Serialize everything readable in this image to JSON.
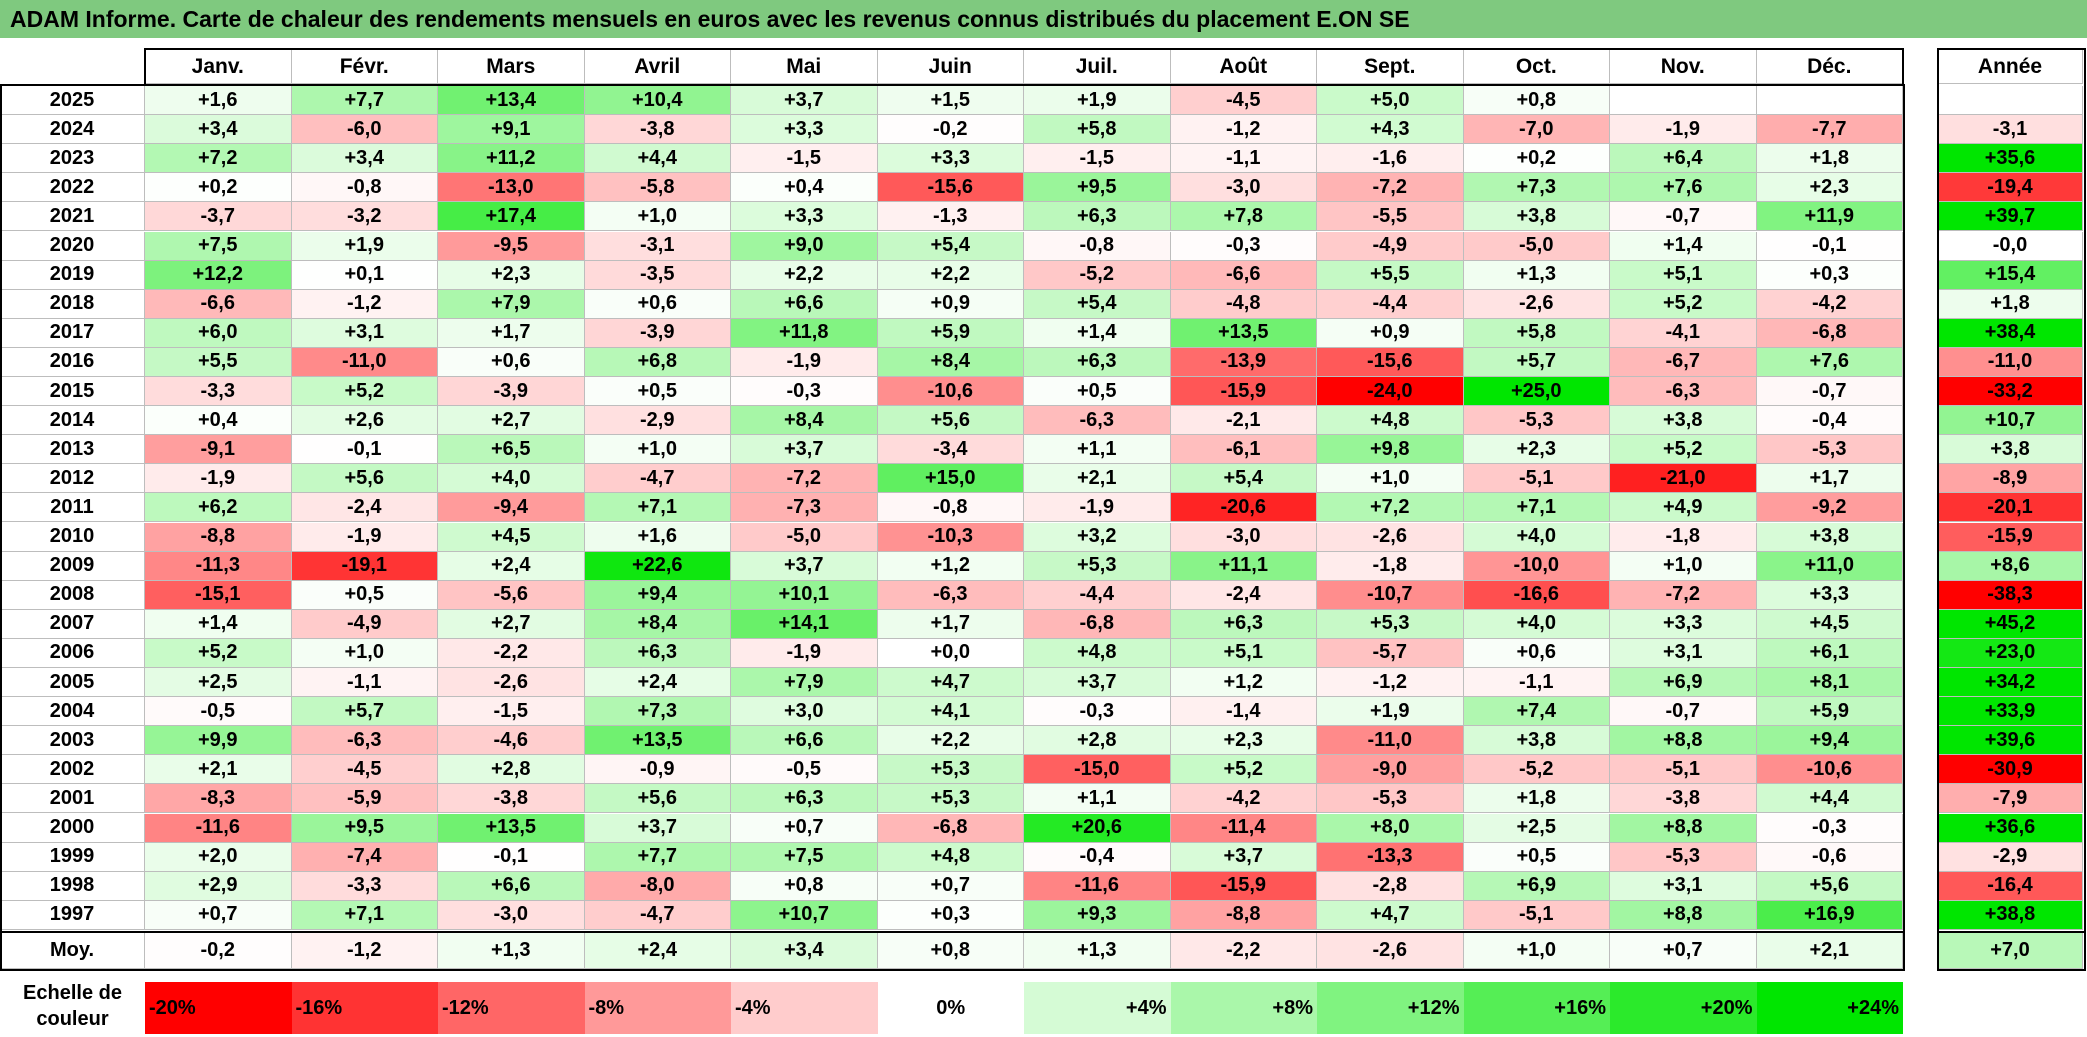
{
  "title": "ADAM Informe. Carte de chaleur des rendements mensuels en euros avec les revenus connus distribués du placement E.ON SE",
  "chart_data": {
    "type": "heatmap",
    "title": "ADAM Informe. Carte de chaleur des rendements mensuels en euros avec les revenus connus distribués du placement E.ON SE",
    "columns": [
      "Janv.",
      "Févr.",
      "Mars",
      "Avril",
      "Mai",
      "Juin",
      "Juil.",
      "Août",
      "Sept.",
      "Oct.",
      "Nov.",
      "Déc."
    ],
    "year_column_label": "Année",
    "rows": [
      {
        "year": "2025",
        "values": [
          "+1,6",
          "+7,7",
          "+13,4",
          "+10,4",
          "+3,7",
          "+1,5",
          "+1,9",
          "-4,5",
          "+5,0",
          "+0,8",
          "",
          ""
        ],
        "annual": ""
      },
      {
        "year": "2024",
        "values": [
          "+3,4",
          "-6,0",
          "+9,1",
          "-3,8",
          "+3,3",
          "-0,2",
          "+5,8",
          "-1,2",
          "+4,3",
          "-7,0",
          "-1,9",
          "-7,7"
        ],
        "annual": "-3,1"
      },
      {
        "year": "2023",
        "values": [
          "+7,2",
          "+3,4",
          "+11,2",
          "+4,4",
          "-1,5",
          "+3,3",
          "-1,5",
          "-1,1",
          "-1,6",
          "+0,2",
          "+6,4",
          "+1,8"
        ],
        "annual": "+35,6"
      },
      {
        "year": "2022",
        "values": [
          "+0,2",
          "-0,8",
          "-13,0",
          "-5,8",
          "+0,4",
          "-15,6",
          "+9,5",
          "-3,0",
          "-7,2",
          "+7,3",
          "+7,6",
          "+2,3"
        ],
        "annual": "-19,4"
      },
      {
        "year": "2021",
        "values": [
          "-3,7",
          "-3,2",
          "+17,4",
          "+1,0",
          "+3,3",
          "-1,3",
          "+6,3",
          "+7,8",
          "-5,5",
          "+3,8",
          "-0,7",
          "+11,9"
        ],
        "annual": "+39,7"
      },
      {
        "year": "2020",
        "values": [
          "+7,5",
          "+1,9",
          "-9,5",
          "-3,1",
          "+9,0",
          "+5,4",
          "-0,8",
          "-0,3",
          "-4,9",
          "-5,0",
          "+1,4",
          "-0,1"
        ],
        "annual": "-0,0"
      },
      {
        "year": "2019",
        "values": [
          "+12,2",
          "+0,1",
          "+2,3",
          "-3,5",
          "+2,2",
          "+2,2",
          "-5,2",
          "-6,6",
          "+5,5",
          "+1,3",
          "+5,1",
          "+0,3"
        ],
        "annual": "+15,4"
      },
      {
        "year": "2018",
        "values": [
          "-6,6",
          "-1,2",
          "+7,9",
          "+0,6",
          "+6,6",
          "+0,9",
          "+5,4",
          "-4,8",
          "-4,4",
          "-2,6",
          "+5,2",
          "-4,2"
        ],
        "annual": "+1,8"
      },
      {
        "year": "2017",
        "values": [
          "+6,0",
          "+3,1",
          "+1,7",
          "-3,9",
          "+11,8",
          "+5,9",
          "+1,4",
          "+13,5",
          "+0,9",
          "+5,8",
          "-4,1",
          "-6,8"
        ],
        "annual": "+38,4"
      },
      {
        "year": "2016",
        "values": [
          "+5,5",
          "-11,0",
          "+0,6",
          "+6,8",
          "-1,9",
          "+8,4",
          "+6,3",
          "-13,9",
          "-15,6",
          "+5,7",
          "-6,7",
          "+7,6"
        ],
        "annual": "-11,0"
      },
      {
        "year": "2015",
        "values": [
          "-3,3",
          "+5,2",
          "-3,9",
          "+0,5",
          "-0,3",
          "-10,6",
          "+0,5",
          "-15,9",
          "-24,0",
          "+25,0",
          "-6,3",
          "-0,7"
        ],
        "annual": "-33,2"
      },
      {
        "year": "2014",
        "values": [
          "+0,4",
          "+2,6",
          "+2,7",
          "-2,9",
          "+8,4",
          "+5,6",
          "-6,3",
          "-2,1",
          "+4,8",
          "-5,3",
          "+3,8",
          "-0,4"
        ],
        "annual": "+10,7"
      },
      {
        "year": "2013",
        "values": [
          "-9,1",
          "-0,1",
          "+6,5",
          "+1,0",
          "+3,7",
          "-3,4",
          "+1,1",
          "-6,1",
          "+9,8",
          "+2,3",
          "+5,2",
          "-5,3"
        ],
        "annual": "+3,8"
      },
      {
        "year": "2012",
        "values": [
          "-1,9",
          "+5,6",
          "+4,0",
          "-4,7",
          "-7,2",
          "+15,0",
          "+2,1",
          "+5,4",
          "+1,0",
          "-5,1",
          "-21,0",
          "+1,7"
        ],
        "annual": "-8,9"
      },
      {
        "year": "2011",
        "values": [
          "+6,2",
          "-2,4",
          "-9,4",
          "+7,1",
          "-7,3",
          "-0,8",
          "-1,9",
          "-20,6",
          "+7,2",
          "+7,1",
          "+4,9",
          "-9,2"
        ],
        "annual": "-20,1"
      },
      {
        "year": "2010",
        "values": [
          "-8,8",
          "-1,9",
          "+4,5",
          "+1,6",
          "-5,0",
          "-10,3",
          "+3,2",
          "-3,0",
          "-2,6",
          "+4,0",
          "-1,8",
          "+3,8"
        ],
        "annual": "-15,9"
      },
      {
        "year": "2009",
        "values": [
          "-11,3",
          "-19,1",
          "+2,4",
          "+22,6",
          "+3,7",
          "+1,2",
          "+5,3",
          "+11,1",
          "-1,8",
          "-10,0",
          "+1,0",
          "+11,0"
        ],
        "annual": "+8,6"
      },
      {
        "year": "2008",
        "values": [
          "-15,1",
          "+0,5",
          "-5,6",
          "+9,4",
          "+10,1",
          "-6,3",
          "-4,4",
          "-2,4",
          "-10,7",
          "-16,6",
          "-7,2",
          "+3,3"
        ],
        "annual": "-38,3"
      },
      {
        "year": "2007",
        "values": [
          "+1,4",
          "-4,9",
          "+2,7",
          "+8,4",
          "+14,1",
          "+1,7",
          "-6,8",
          "+6,3",
          "+5,3",
          "+4,0",
          "+3,3",
          "+4,5"
        ],
        "annual": "+45,2"
      },
      {
        "year": "2006",
        "values": [
          "+5,2",
          "+1,0",
          "-2,2",
          "+6,3",
          "-1,9",
          "+0,0",
          "+4,8",
          "+5,1",
          "-5,7",
          "+0,6",
          "+3,1",
          "+6,1"
        ],
        "annual": "+23,0"
      },
      {
        "year": "2005",
        "values": [
          "+2,5",
          "-1,1",
          "-2,6",
          "+2,4",
          "+7,9",
          "+4,7",
          "+3,7",
          "+1,2",
          "-1,2",
          "-1,1",
          "+6,9",
          "+8,1"
        ],
        "annual": "+34,2"
      },
      {
        "year": "2004",
        "values": [
          "-0,5",
          "+5,7",
          "-1,5",
          "+7,3",
          "+3,0",
          "+4,1",
          "-0,3",
          "-1,4",
          "+1,9",
          "+7,4",
          "-0,7",
          "+5,9"
        ],
        "annual": "+33,9"
      },
      {
        "year": "2003",
        "values": [
          "+9,9",
          "-6,3",
          "-4,6",
          "+13,5",
          "+6,6",
          "+2,2",
          "+2,8",
          "+2,3",
          "-11,0",
          "+3,8",
          "+8,8",
          "+9,4"
        ],
        "annual": "+39,6"
      },
      {
        "year": "2002",
        "values": [
          "+2,1",
          "-4,5",
          "+2,8",
          "-0,9",
          "-0,5",
          "+5,3",
          "-15,0",
          "+5,2",
          "-9,0",
          "-5,2",
          "-5,1",
          "-10,6"
        ],
        "annual": "-30,9"
      },
      {
        "year": "2001",
        "values": [
          "-8,3",
          "-5,9",
          "-3,8",
          "+5,6",
          "+6,3",
          "+5,3",
          "+1,1",
          "-4,2",
          "-5,3",
          "+1,8",
          "-3,8",
          "+4,4"
        ],
        "annual": "-7,9"
      },
      {
        "year": "2000",
        "values": [
          "-11,6",
          "+9,5",
          "+13,5",
          "+3,7",
          "+0,7",
          "-6,8",
          "+20,6",
          "-11,4",
          "+8,0",
          "+2,5",
          "+8,8",
          "-0,3"
        ],
        "annual": "+36,6"
      },
      {
        "year": "1999",
        "values": [
          "+2,0",
          "-7,4",
          "-0,1",
          "+7,7",
          "+7,5",
          "+4,8",
          "-0,4",
          "+3,7",
          "-13,3",
          "+0,5",
          "-5,3",
          "-0,6"
        ],
        "annual": "-2,9"
      },
      {
        "year": "1998",
        "values": [
          "+2,9",
          "-3,3",
          "+6,6",
          "-8,0",
          "+0,8",
          "+0,7",
          "-11,6",
          "-15,9",
          "-2,8",
          "+6,9",
          "+3,1",
          "+5,6"
        ],
        "annual": "-16,4"
      },
      {
        "year": "1997",
        "values": [
          "+0,7",
          "+7,1",
          "-3,0",
          "-4,7",
          "+10,7",
          "+0,3",
          "+9,3",
          "-8,8",
          "+4,7",
          "-5,1",
          "+8,8",
          "+16,9"
        ],
        "annual": "+38,8"
      }
    ],
    "average": {
      "label": "Moy.",
      "values": [
        "-0,2",
        "-1,2",
        "+1,3",
        "+2,4",
        "+3,4",
        "+0,8",
        "+1,3",
        "-2,2",
        "-2,6",
        "+1,0",
        "+0,7",
        "+2,1"
      ],
      "annual": "+7,0"
    },
    "color_scale": {
      "label": "Echelle de couleur",
      "steps": [
        "-20%",
        "-16%",
        "-12%",
        "-8%",
        "-4%",
        "0%",
        "+4%",
        "+8%",
        "+12%",
        "+16%",
        "+20%",
        "+24%"
      ],
      "negative_color": "#ff0000",
      "neutral_color": "#ffffff",
      "positive_color": "#00e600"
    }
  }
}
